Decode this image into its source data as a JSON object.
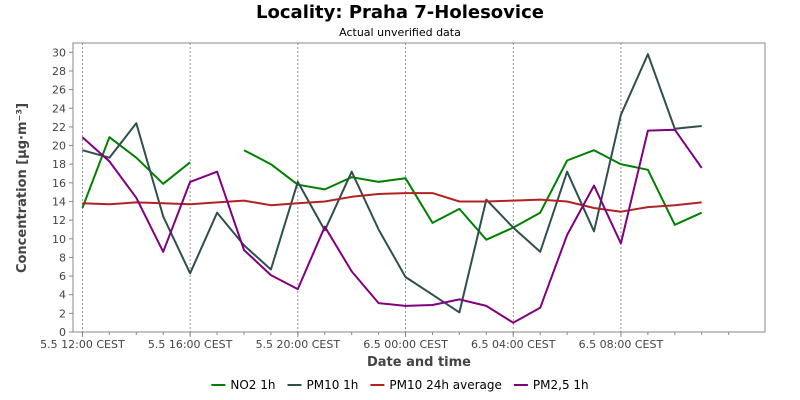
{
  "chart_data": {
    "type": "line",
    "title": "Locality: Praha 7-Holesovice",
    "subtitle": "Actual unverified data",
    "xlabel": "Date and time",
    "ylabel": "Concentration [µg·m⁻³]",
    "ylim": [
      0,
      31
    ],
    "yticks": [
      0,
      2,
      4,
      6,
      8,
      10,
      12,
      14,
      16,
      18,
      20,
      22,
      24,
      26,
      28,
      30
    ],
    "x_hours": [
      12,
      13,
      14,
      15,
      16,
      17,
      18,
      19,
      20,
      21,
      22,
      23,
      24,
      25,
      26,
      27,
      28,
      29,
      30,
      31,
      32,
      33,
      34,
      35,
      36
    ],
    "xlim": [
      11.65,
      37.35
    ],
    "xticks": [
      {
        "hour": 12,
        "label": "5.5 12:00 CEST"
      },
      {
        "hour": 16,
        "label": "5.5 16:00 CEST"
      },
      {
        "hour": 20,
        "label": "5.5 20:00 CEST"
      },
      {
        "hour": 24,
        "label": "6.5 00:00 CEST"
      },
      {
        "hour": 28,
        "label": "6.5 04:00 CEST"
      },
      {
        "hour": 32,
        "label": "6.5 08:00 CEST"
      }
    ],
    "grid": true,
    "legend_position": "bottom",
    "series": [
      {
        "name": "NO2 1h",
        "color": "#008000",
        "values": [
          13.3,
          20.9,
          18.7,
          15.9,
          18.2,
          null,
          19.5,
          18.0,
          15.8,
          15.3,
          16.6,
          16.1,
          16.5,
          11.7,
          13.2,
          9.9,
          11.2,
          12.8,
          18.4,
          19.5,
          18.0,
          17.4,
          11.5,
          12.8,
          null
        ]
      },
      {
        "name": "PM10 1h",
        "color": "#2f4f4f",
        "values": [
          19.5,
          18.7,
          22.4,
          12.4,
          6.3,
          12.8,
          9.3,
          6.7,
          16.1,
          10.9,
          17.2,
          11.0,
          5.9,
          4.0,
          2.1,
          14.2,
          11.2,
          8.6,
          17.2,
          10.8,
          23.3,
          29.8,
          21.8,
          22.1,
          null
        ]
      },
      {
        "name": "PM10 24h average",
        "color": "#b22222",
        "values": [
          13.8,
          13.7,
          13.9,
          13.8,
          13.7,
          13.9,
          14.1,
          13.6,
          13.8,
          14.0,
          14.5,
          14.8,
          14.9,
          14.9,
          14.0,
          14.0,
          14.1,
          14.2,
          14.0,
          13.3,
          12.9,
          13.4,
          13.6,
          13.9,
          null
        ]
      },
      {
        "name": "PM2,5 1h",
        "color": "#800080",
        "values": [
          20.9,
          18.3,
          14.4,
          8.6,
          16.1,
          17.2,
          8.8,
          6.1,
          4.6,
          11.3,
          6.5,
          3.1,
          2.8,
          2.9,
          3.5,
          2.8,
          1.0,
          2.6,
          10.4,
          15.7,
          9.5,
          21.6,
          21.7,
          17.6,
          null
        ]
      }
    ]
  }
}
